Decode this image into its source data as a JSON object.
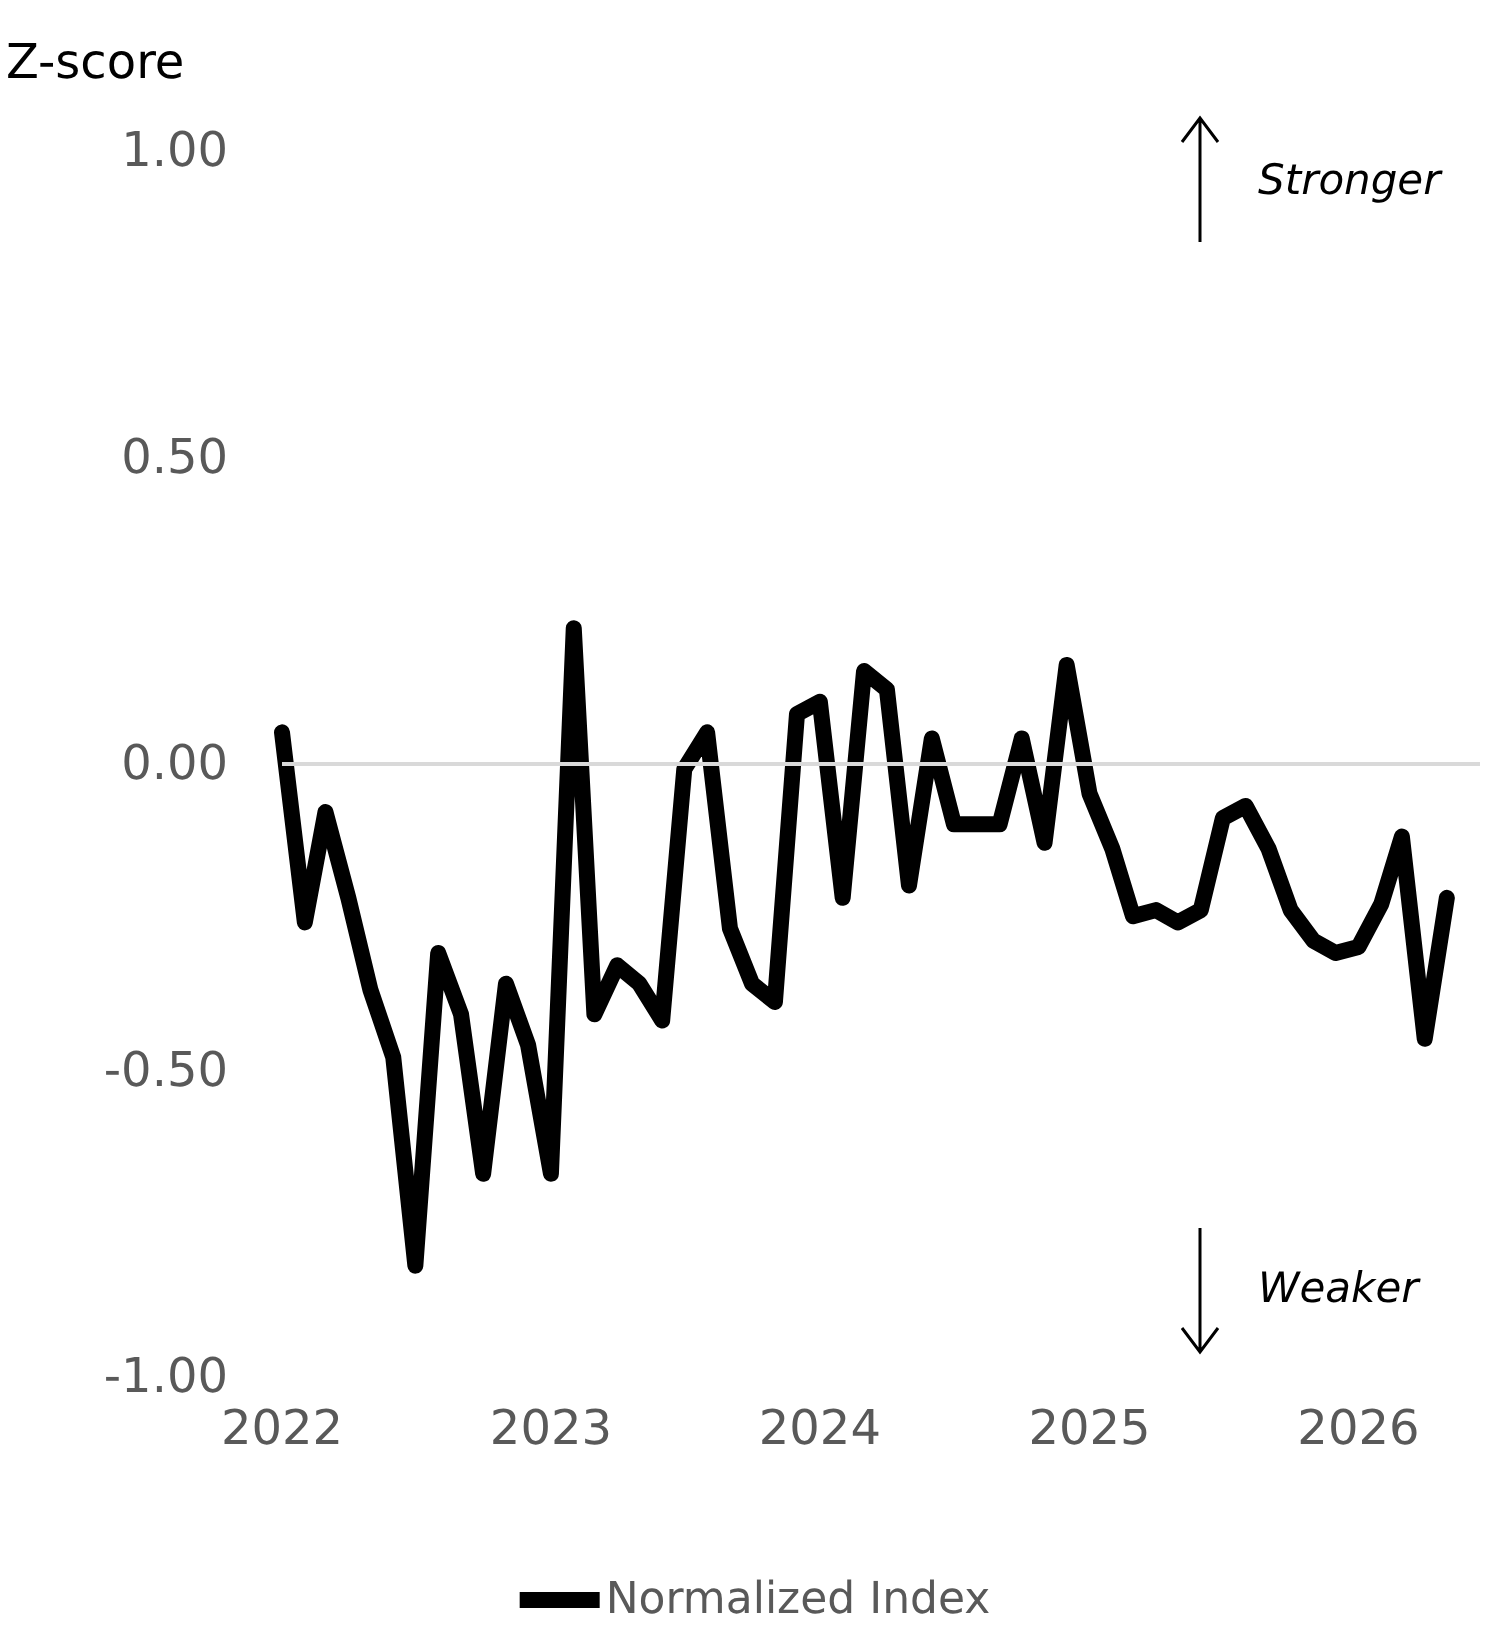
{
  "chart_data": {
    "type": "line",
    "ylabel": "Z-score",
    "x": [
      "2022-01",
      "2022-02",
      "2022-03",
      "2022-04",
      "2022-05",
      "2022-06",
      "2022-07",
      "2022-08",
      "2022-09",
      "2022-10",
      "2022-11",
      "2022-12",
      "2023-01",
      "2023-02",
      "2023-03",
      "2023-04",
      "2023-05",
      "2023-06",
      "2023-07",
      "2023-08",
      "2023-09",
      "2023-10",
      "2023-11",
      "2023-12",
      "2024-01",
      "2024-02",
      "2024-03",
      "2024-04",
      "2024-05",
      "2024-06",
      "2024-07",
      "2024-08",
      "2024-09",
      "2024-10",
      "2024-11",
      "2024-12",
      "2025-01",
      "2025-02",
      "2025-03",
      "2025-04",
      "2025-05",
      "2025-06",
      "2025-07",
      "2025-08",
      "2025-09",
      "2025-10",
      "2025-11",
      "2025-12",
      "2026-01",
      "2026-02",
      "2026-03",
      "2026-04",
      "2026-05"
    ],
    "series": [
      {
        "name": "Normalized Index",
        "color": "#000000",
        "values": [
          0.05,
          -0.26,
          -0.08,
          -0.22,
          -0.37,
          -0.48,
          -0.82,
          -0.31,
          -0.41,
          -0.67,
          -0.36,
          -0.46,
          -0.67,
          0.22,
          -0.41,
          -0.33,
          -0.36,
          -0.42,
          -0.01,
          0.05,
          -0.27,
          -0.36,
          -0.39,
          0.08,
          0.1,
          -0.22,
          0.15,
          0.12,
          -0.2,
          0.04,
          -0.1,
          -0.1,
          -0.1,
          0.04,
          -0.13,
          0.16,
          -0.05,
          -0.14,
          -0.25,
          -0.24,
          -0.26,
          -0.24,
          -0.09,
          -0.07,
          -0.14,
          -0.24,
          -0.29,
          -0.31,
          -0.3,
          -0.23,
          -0.12,
          -0.45,
          -0.22
        ]
      }
    ],
    "xlim": [
      "2022-01",
      "2026-06-15"
    ],
    "xticks": [
      "2022",
      "2023",
      "2024",
      "2025",
      "2026"
    ],
    "ylim": [
      -1,
      1
    ],
    "yticks": [
      {
        "value": -1,
        "label": "-1.00"
      },
      {
        "value": -0.5,
        "label": "-0.50"
      },
      {
        "value": 0,
        "label": "0.00"
      },
      {
        "value": 0.5,
        "label": "0.50"
      },
      {
        "value": 1,
        "label": "1.00"
      }
    ],
    "ref_lines": [
      {
        "axis": "y",
        "value": 0,
        "color": "#d9d9d9"
      }
    ],
    "annotations": [
      "Stronger",
      "Weaker"
    ],
    "grid": false,
    "legend": "bottom",
    "line_style": "solid"
  }
}
